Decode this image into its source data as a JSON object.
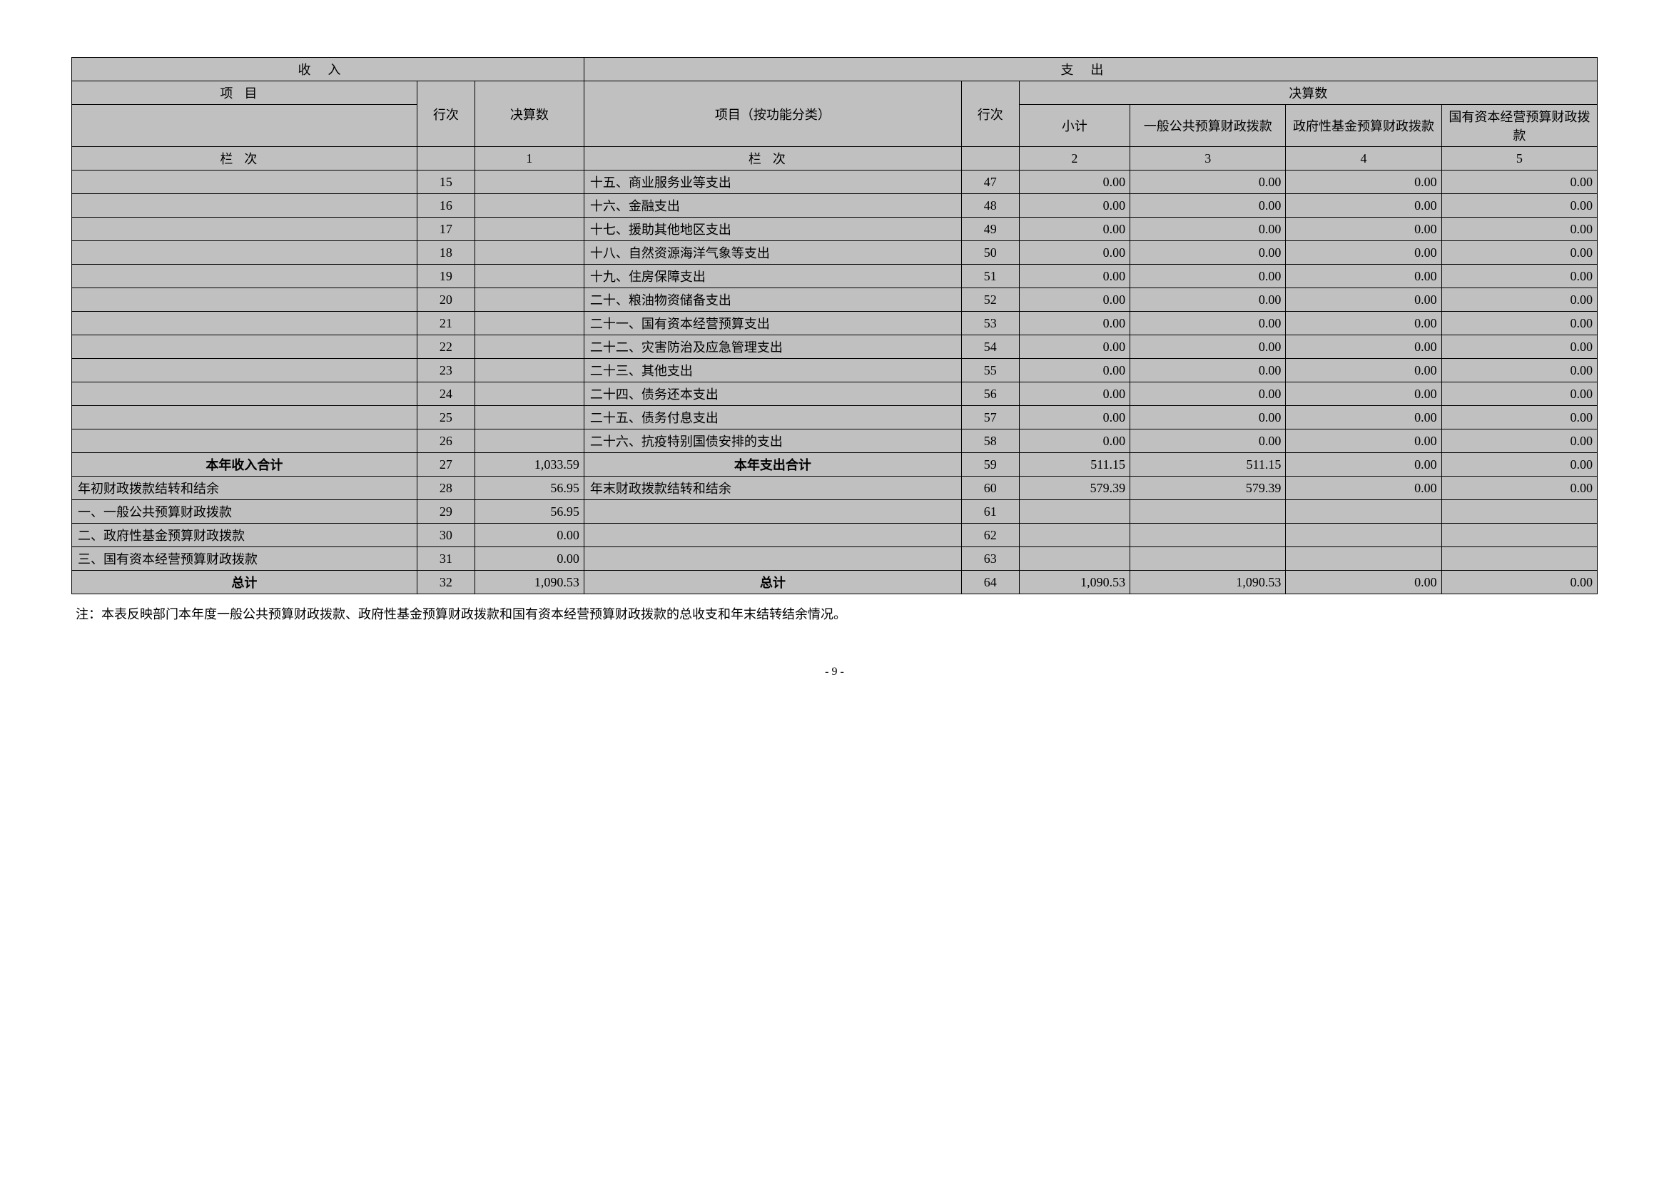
{
  "headers": {
    "income": "收入",
    "expense": "支出",
    "item": "项目",
    "rownum": "行次",
    "final": "决算数",
    "item_func": "项目（按功能分类）",
    "subtotal": "小计",
    "general": "一般公共预算财政拨款",
    "govfund": "政府性基金预算财政拨款",
    "stateowned": "国有资本经营预算财政拨款",
    "colord": "栏次",
    "c1": "1",
    "c2": "2",
    "c3": "3",
    "c4": "4",
    "c5": "5"
  },
  "rows": [
    {
      "l": "",
      "ln": "15",
      "lv": "",
      "r": "十五、商业服务业等支出",
      "rn": "47",
      "v1": "0.00",
      "v2": "0.00",
      "v3": "0.00",
      "v4": "0.00"
    },
    {
      "l": "",
      "ln": "16",
      "lv": "",
      "r": "十六、金融支出",
      "rn": "48",
      "v1": "0.00",
      "v2": "0.00",
      "v3": "0.00",
      "v4": "0.00"
    },
    {
      "l": "",
      "ln": "17",
      "lv": "",
      "r": "十七、援助其他地区支出",
      "rn": "49",
      "v1": "0.00",
      "v2": "0.00",
      "v3": "0.00",
      "v4": "0.00"
    },
    {
      "l": "",
      "ln": "18",
      "lv": "",
      "r": "十八、自然资源海洋气象等支出",
      "rn": "50",
      "v1": "0.00",
      "v2": "0.00",
      "v3": "0.00",
      "v4": "0.00"
    },
    {
      "l": "",
      "ln": "19",
      "lv": "",
      "r": "十九、住房保障支出",
      "rn": "51",
      "v1": "0.00",
      "v2": "0.00",
      "v3": "0.00",
      "v4": "0.00"
    },
    {
      "l": "",
      "ln": "20",
      "lv": "",
      "r": "二十、粮油物资储备支出",
      "rn": "52",
      "v1": "0.00",
      "v2": "0.00",
      "v3": "0.00",
      "v4": "0.00"
    },
    {
      "l": "",
      "ln": "21",
      "lv": "",
      "r": "二十一、国有资本经营预算支出",
      "rn": "53",
      "v1": "0.00",
      "v2": "0.00",
      "v3": "0.00",
      "v4": "0.00"
    },
    {
      "l": "",
      "ln": "22",
      "lv": "",
      "r": "二十二、灾害防治及应急管理支出",
      "rn": "54",
      "v1": "0.00",
      "v2": "0.00",
      "v3": "0.00",
      "v4": "0.00"
    },
    {
      "l": "",
      "ln": "23",
      "lv": "",
      "r": "二十三、其他支出",
      "rn": "55",
      "v1": "0.00",
      "v2": "0.00",
      "v3": "0.00",
      "v4": "0.00"
    },
    {
      "l": "",
      "ln": "24",
      "lv": "",
      "r": "二十四、债务还本支出",
      "rn": "56",
      "v1": "0.00",
      "v2": "0.00",
      "v3": "0.00",
      "v4": "0.00"
    },
    {
      "l": "",
      "ln": "25",
      "lv": "",
      "r": "二十五、债务付息支出",
      "rn": "57",
      "v1": "0.00",
      "v2": "0.00",
      "v3": "0.00",
      "v4": "0.00"
    },
    {
      "l": "",
      "ln": "26",
      "lv": "",
      "r": "二十六、抗疫特别国债安排的支出",
      "rn": "58",
      "v1": "0.00",
      "v2": "0.00",
      "v3": "0.00",
      "v4": "0.00"
    }
  ],
  "special": {
    "yearIncome": {
      "l": "本年收入合计",
      "ln": "27",
      "lv": "1,033.59",
      "r": "本年支出合计",
      "rn": "59",
      "v1": "511.15",
      "v2": "511.15",
      "v3": "0.00",
      "v4": "0.00"
    },
    "beginBal": {
      "l": "年初财政拨款结转和结余",
      "ln": "28",
      "lv": "56.95",
      "r": "年末财政拨款结转和结余",
      "rn": "60",
      "v1": "579.39",
      "v2": "579.39",
      "v3": "0.00",
      "v4": "0.00"
    },
    "one": {
      "l": "一、一般公共预算财政拨款",
      "ln": "29",
      "lv": "56.95",
      "r": "",
      "rn": "61",
      "v1": "",
      "v2": "",
      "v3": "",
      "v4": ""
    },
    "two": {
      "l": "二、政府性基金预算财政拨款",
      "ln": "30",
      "lv": "0.00",
      "r": "",
      "rn": "62",
      "v1": "",
      "v2": "",
      "v3": "",
      "v4": ""
    },
    "three": {
      "l": "三、国有资本经营预算财政拨款",
      "ln": "31",
      "lv": "0.00",
      "r": "",
      "rn": "63",
      "v1": "",
      "v2": "",
      "v3": "",
      "v4": ""
    },
    "total": {
      "l": "总计",
      "ln": "32",
      "lv": "1,090.53",
      "r": "总计",
      "rn": "64",
      "v1": "1,090.53",
      "v2": "1,090.53",
      "v3": "0.00",
      "v4": "0.00"
    }
  },
  "footnote": "注：本表反映部门本年度一般公共预算财政拨款、政府性基金预算财政拨款和国有资本经营预算财政拨款的总收支和年末结转结余情况。",
  "pagenum": "- 9 -"
}
